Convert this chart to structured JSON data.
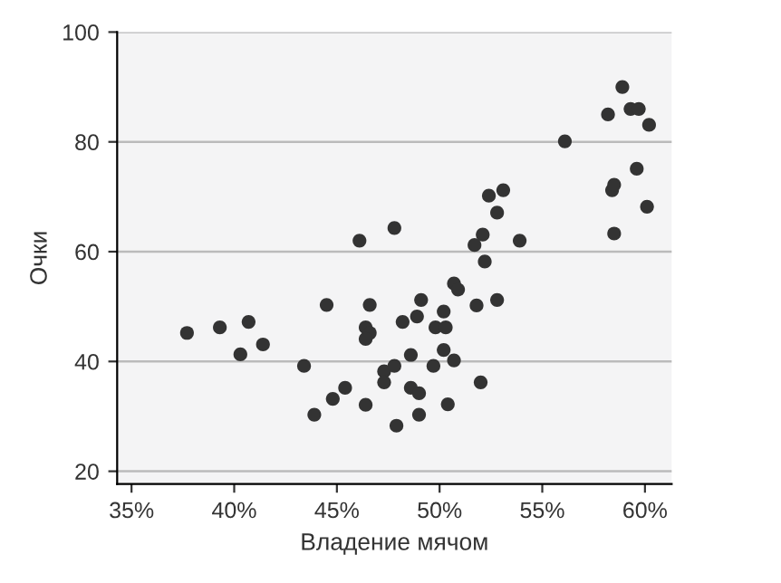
{
  "chart_data": {
    "type": "scatter",
    "xlabel": "Владение мячом",
    "ylabel": "Очки",
    "x": [
      37.7,
      39.3,
      40.7,
      40.3,
      41.4,
      43.4,
      43.9,
      44.8,
      45.4,
      44.5,
      46.1,
      46.6,
      46.4,
      46.6,
      46.4,
      46.4,
      47.8,
      47.3,
      47.3,
      47.8,
      47.9,
      48.2,
      48.6,
      48.9,
      49.1,
      48.6,
      49.0,
      49.0,
      49.7,
      49.8,
      50.3,
      50.2,
      50.2,
      50.7,
      50.4,
      50.7,
      50.9,
      51.8,
      51.7,
      52.1,
      52.2,
      52.0,
      52.4,
      53.1,
      52.8,
      52.8,
      53.9,
      56.1,
      58.2,
      58.9,
      59.3,
      59.7,
      60.2,
      59.6,
      58.4,
      58.5,
      58.5,
      60.1
    ],
    "values": [
      45.2,
      46.2,
      47.2,
      41.3,
      43.1,
      39.2,
      30.3,
      33.2,
      35.2,
      50.3,
      62.0,
      50.3,
      46.2,
      45.2,
      44.1,
      32.1,
      64.3,
      38.2,
      36.2,
      39.2,
      28.3,
      47.2,
      41.2,
      48.2,
      51.2,
      35.2,
      34.2,
      30.3,
      39.2,
      46.2,
      46.2,
      49.1,
      42.1,
      40.2,
      32.2,
      54.2,
      53.1,
      50.2,
      61.2,
      63.1,
      58.2,
      36.2,
      70.2,
      71.2,
      67.1,
      51.2,
      62.0,
      80.1,
      85.0,
      90.0,
      86.0,
      86.0,
      83.1,
      75.1,
      71.2,
      72.2,
      63.3,
      68.2
    ],
    "color": "#333333",
    "marker": "circle",
    "xlim": [
      34.3,
      61.3
    ],
    "ylim": [
      17.7,
      100
    ],
    "xticks": [
      {
        "value": 35,
        "label": "35%"
      },
      {
        "value": 40,
        "label": "40%"
      },
      {
        "value": 45,
        "label": "45%"
      },
      {
        "value": 50,
        "label": "50%"
      },
      {
        "value": 55,
        "label": "55%"
      },
      {
        "value": 60,
        "label": "60%"
      }
    ],
    "yticks": [
      20,
      40,
      60,
      80,
      100
    ],
    "grid": "y"
  }
}
